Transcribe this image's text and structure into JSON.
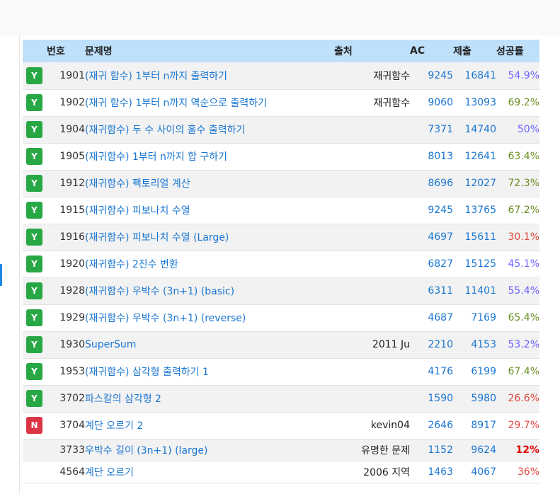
{
  "header": {
    "number": "번호",
    "title": "문제명",
    "source": "출처",
    "ac": "AC",
    "submit": "제출",
    "rate": "성공률"
  },
  "rows": [
    {
      "badge": "Y",
      "id": "1901",
      "title": "(재귀 함수) 1부터 n까지 출력하기",
      "source": "재귀함수",
      "ac": "9245",
      "submit": "16841",
      "rate": "54.9%",
      "rate_class": "r-blue"
    },
    {
      "badge": "Y",
      "id": "1902",
      "title": "(재귀 함수) 1부터 n까지 역순으로 출력하기",
      "source": "재귀함수",
      "ac": "9060",
      "submit": "13093",
      "rate": "69.2%",
      "rate_class": "r-green"
    },
    {
      "badge": "Y",
      "id": "1904",
      "title": "(재귀함수) 두 수 사이의 홀수 출력하기",
      "source": "",
      "ac": "7371",
      "submit": "14740",
      "rate": "50%",
      "rate_class": "r-blue"
    },
    {
      "badge": "Y",
      "id": "1905",
      "title": "(재귀함수) 1부터 n까지 합 구하기",
      "source": "",
      "ac": "8013",
      "submit": "12641",
      "rate": "63.4%",
      "rate_class": "r-green"
    },
    {
      "badge": "Y",
      "id": "1912",
      "title": "(재귀함수) 팩토리얼 계산",
      "source": "",
      "ac": "8696",
      "submit": "12027",
      "rate": "72.3%",
      "rate_class": "r-green"
    },
    {
      "badge": "Y",
      "id": "1915",
      "title": "(재귀함수) 피보나치 수열",
      "source": "",
      "ac": "9245",
      "submit": "13765",
      "rate": "67.2%",
      "rate_class": "r-green"
    },
    {
      "badge": "Y",
      "id": "1916",
      "title": "(재귀함수) 피보나치 수열 (Large)",
      "source": "",
      "ac": "4697",
      "submit": "15611",
      "rate": "30.1%",
      "rate_class": "r-red"
    },
    {
      "badge": "Y",
      "id": "1920",
      "title": "(재귀함수) 2진수 변환",
      "source": "",
      "ac": "6827",
      "submit": "15125",
      "rate": "45.1%",
      "rate_class": "r-blue"
    },
    {
      "badge": "Y",
      "id": "1928",
      "title": "(재귀함수) 우박수 (3n+1) (basic)",
      "source": "",
      "ac": "6311",
      "submit": "11401",
      "rate": "55.4%",
      "rate_class": "r-blue"
    },
    {
      "badge": "Y",
      "id": "1929",
      "title": "(재귀함수) 우박수 (3n+1) (reverse)",
      "source": "",
      "ac": "4687",
      "submit": "7169",
      "rate": "65.4%",
      "rate_class": "r-green"
    },
    {
      "badge": "Y",
      "id": "1930",
      "title": "SuperSum",
      "source": "2011 Ju",
      "ac": "2210",
      "submit": "4153",
      "rate": "53.2%",
      "rate_class": "r-blue"
    },
    {
      "badge": "Y",
      "id": "1953",
      "title": "(재귀함수) 삼각형 출력하기 1",
      "source": "",
      "ac": "4176",
      "submit": "6199",
      "rate": "67.4%",
      "rate_class": "r-green"
    },
    {
      "badge": "Y",
      "id": "3702",
      "title": "파스칼의 삼각형 2",
      "source": "",
      "ac": "1590",
      "submit": "5980",
      "rate": "26.6%",
      "rate_class": "r-red"
    },
    {
      "badge": "N",
      "id": "3704",
      "title": "계단 오르기 2",
      "source": "kevin04",
      "ac": "2646",
      "submit": "8917",
      "rate": "29.7%",
      "rate_class": "r-red"
    },
    {
      "badge": "",
      "id": "3733",
      "title": "우박수 길이 (3n+1) (large)",
      "source": "유명한 문제",
      "ac": "1152",
      "submit": "9624",
      "rate": "12%",
      "rate_class": "r-redbold"
    },
    {
      "badge": "",
      "id": "4564",
      "title": "계단 오르기",
      "source": "2006 지역",
      "ac": "1463",
      "submit": "4067",
      "rate": "36%",
      "rate_class": "r-red"
    }
  ],
  "colors": {
    "header_bg": "#bfe0fb",
    "link": "#1976d2",
    "badge_yes": "#28a745",
    "badge_no": "#dc3545"
  }
}
